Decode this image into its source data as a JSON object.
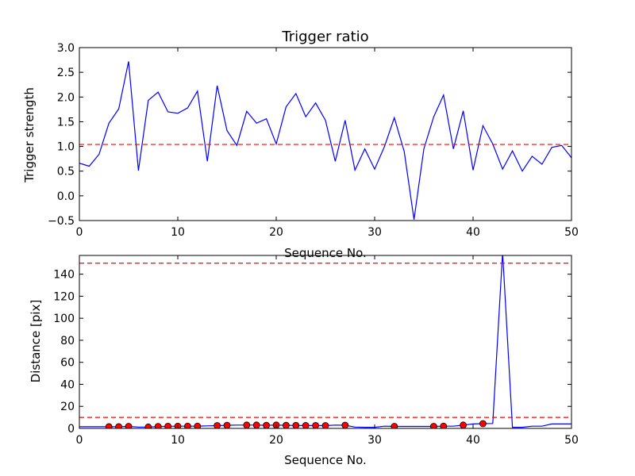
{
  "chart_data": [
    {
      "type": "line",
      "title": "Trigger ratio",
      "xlabel": "Sequence No.",
      "ylabel": "Trigger strength",
      "xlim": [
        0,
        50
      ],
      "ylim": [
        -0.5,
        3.0
      ],
      "xticks": [
        "0",
        "10",
        "20",
        "30",
        "40",
        "50"
      ],
      "yticks": [
        "−0.5",
        "0.0",
        "0.5",
        "1.0",
        "1.5",
        "2.0",
        "2.5",
        "3.0"
      ],
      "grid": false,
      "series": [
        {
          "color": "#0000ff",
          "x": [
            0,
            1,
            2,
            3,
            4,
            5,
            6,
            7,
            8,
            9,
            10,
            11,
            12,
            13,
            14,
            15,
            16,
            17,
            18,
            19,
            20,
            21,
            22,
            23,
            24,
            25,
            26,
            27,
            28,
            29,
            30,
            31,
            32,
            33,
            34,
            35,
            36,
            37,
            38,
            39,
            40,
            41,
            42,
            43,
            44,
            45,
            46,
            47,
            48,
            49,
            50
          ],
          "y": [
            0.66,
            0.6,
            0.84,
            1.47,
            1.76,
            2.72,
            0.51,
            1.93,
            2.1,
            1.7,
            1.67,
            1.78,
            2.12,
            0.7,
            2.23,
            1.32,
            1.02,
            1.71,
            1.47,
            1.56,
            1.05,
            1.8,
            2.07,
            1.6,
            1.88,
            1.53,
            0.7,
            1.53,
            0.52,
            0.95,
            0.54,
            1.0,
            1.58,
            0.9,
            -0.48,
            0.95,
            1.6,
            2.04,
            0.95,
            1.72,
            0.52,
            1.42,
            1.05,
            0.54,
            0.91,
            0.5,
            0.8,
            0.64,
            0.98,
            1.02,
            0.77
          ]
        }
      ],
      "reference_lines": [
        {
          "y": 1.04,
          "color": "#ff0000",
          "style": "dashed"
        }
      ]
    },
    {
      "type": "line",
      "title": "",
      "xlabel": "Sequence No.",
      "ylabel": "Distance [pix]",
      "xlim": [
        0,
        50
      ],
      "ylim": [
        0,
        157
      ],
      "xticks": [
        "0",
        "10",
        "20",
        "30",
        "40",
        "50"
      ],
      "yticks": [
        "0",
        "20",
        "40",
        "60",
        "80",
        "100",
        "120",
        "140"
      ],
      "grid": false,
      "series": [
        {
          "color": "#0000ff",
          "x": [
            0,
            1,
            2,
            3,
            4,
            5,
            6,
            7,
            8,
            9,
            10,
            11,
            12,
            13,
            14,
            15,
            16,
            17,
            18,
            19,
            20,
            21,
            22,
            23,
            24,
            25,
            26,
            27,
            28,
            29,
            30,
            31,
            32,
            33,
            34,
            35,
            36,
            37,
            38,
            39,
            40,
            41,
            42,
            43,
            44,
            45,
            46,
            47,
            48,
            49,
            50
          ],
          "y": [
            1.5,
            1.5,
            1.5,
            1.5,
            1.5,
            1.8,
            1.2,
            1.2,
            1.7,
            1.9,
            2.0,
            2.0,
            2.0,
            2.3,
            2.5,
            2.8,
            3.0,
            3.0,
            3.0,
            2.8,
            3.0,
            2.8,
            2.7,
            2.6,
            2.6,
            2.5,
            3.0,
            2.9,
            1.2,
            1.0,
            1.0,
            2.0,
            1.8,
            1.8,
            1.8,
            1.8,
            1.8,
            2.0,
            2.0,
            3.0,
            4.0,
            4.3,
            4.5,
            160,
            1.0,
            1.0,
            2.0,
            2.0,
            4.0,
            4.0,
            4.0
          ]
        },
        {
          "type": "scatter",
          "color": "#ff0000",
          "x": [
            3,
            4,
            5,
            7,
            8,
            9,
            10,
            11,
            12,
            14,
            15,
            17,
            18,
            19,
            20,
            21,
            22,
            23,
            24,
            25,
            27,
            32,
            36,
            37,
            39,
            41
          ],
          "y": [
            1.5,
            1.5,
            1.8,
            1.2,
            1.7,
            1.9,
            2.0,
            2.0,
            2.0,
            2.5,
            2.8,
            3.0,
            3.0,
            2.8,
            3.0,
            2.8,
            2.7,
            2.6,
            2.6,
            2.5,
            2.9,
            1.8,
            1.8,
            2.0,
            3.0,
            4.3
          ]
        }
      ],
      "reference_lines": [
        {
          "y": 150,
          "color": "#ff0000",
          "style": "dashed"
        },
        {
          "y": 10,
          "color": "#ff0000",
          "style": "dashed"
        }
      ]
    }
  ]
}
